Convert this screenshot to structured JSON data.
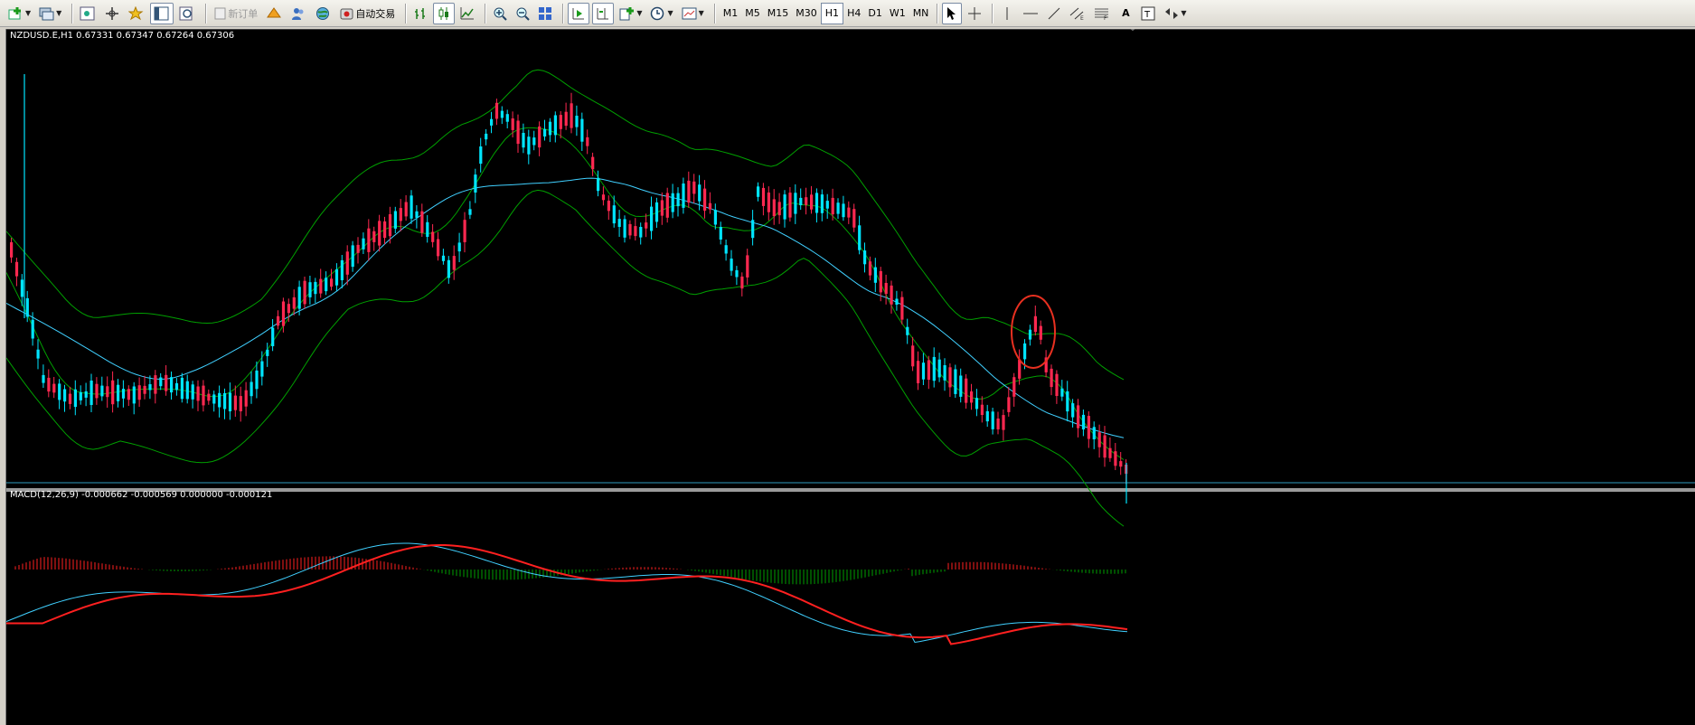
{
  "toolbar": {
    "auto_trade_label": "自动交易",
    "new_order_label": "新订单",
    "timeframes": [
      "M1",
      "M5",
      "M15",
      "M30",
      "H1",
      "H4",
      "D1",
      "W1",
      "MN"
    ],
    "active_timeframe": "H1",
    "text_tool_label": "A"
  },
  "chart": {
    "info": "NZDUSD.E,H1  0.67331 0.67347 0.67264 0.67306",
    "colors": {
      "bull": "#ff2850",
      "bear": "#00e5ff",
      "bands": "#00a000",
      "ma": "#40d0ff",
      "hline": "#40d0ff",
      "highlight": "#e83020"
    }
  },
  "macd": {
    "info": "MACD(12,26,9) -0.000662 -0.000569 0.000000 -0.000121",
    "colors": {
      "hist_pos": "#ff2020",
      "hist_neg": "#00a000",
      "main": "#40d0ff",
      "signal": "#ff2020"
    }
  }
}
